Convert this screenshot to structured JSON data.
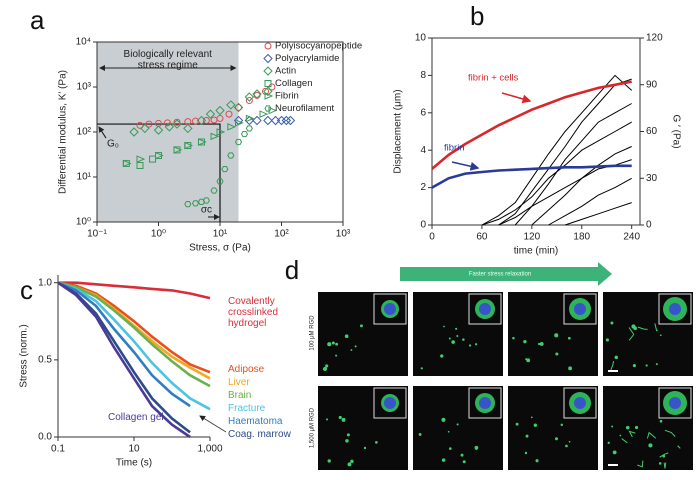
{
  "chart_data": [
    {
      "type": "scatter",
      "panel_label": "a",
      "xlabel": "Stress, σ (Pa)",
      "ylabel": "Differential modulus, K′ (Pa)",
      "xlog": true,
      "ylog": true,
      "xlim": [
        0.1,
        1000
      ],
      "ylim": [
        1,
        10000
      ],
      "xticks": [
        {
          "value": 0.1,
          "label": "10⁻¹"
        },
        {
          "value": 1,
          "label": "10⁰"
        },
        {
          "value": 10,
          "label": "10¹"
        },
        {
          "value": 100,
          "label": "10²"
        },
        {
          "value": 1000,
          "label": "10³"
        }
      ],
      "yticks": [
        {
          "value": 1,
          "label": "10⁰"
        },
        {
          "value": 10,
          "label": "10¹"
        },
        {
          "value": 100,
          "label": "10²"
        },
        {
          "value": 1000,
          "label": "10³"
        },
        {
          "value": 10000,
          "label": "10⁴"
        }
      ],
      "shaded_xrange": [
        0.1,
        20
      ],
      "shade_text": "Biologically relevant stress regime",
      "crosshair": {
        "x": 10,
        "y": 150
      },
      "crosshair_y_label": "G₀",
      "crosshair_x_label": "σc",
      "legend": "upper right",
      "series": [
        {
          "name": "Polyisocyanopeptide",
          "color": "#e0474c",
          "marker": "circle",
          "x": [
            0.5,
            0.7,
            1,
            1.4,
            2,
            3,
            4,
            6,
            8,
            10,
            14,
            20,
            30,
            40,
            55,
            70
          ],
          "values": [
            140,
            150,
            155,
            160,
            165,
            170,
            175,
            180,
            185,
            200,
            250,
            350,
            500,
            650,
            800,
            1000
          ]
        },
        {
          "name": "Polyacrylamide",
          "color": "#3a5fb0",
          "marker": "diamond",
          "x": [
            20,
            30,
            40,
            60,
            80,
            100,
            120,
            140
          ],
          "values": [
            180,
            180,
            180,
            180,
            180,
            180,
            180,
            180
          ]
        },
        {
          "name": "Actin",
          "color": "#3a9a5a",
          "marker": "diamond",
          "x": [
            0.4,
            0.6,
            1,
            1.5,
            2,
            3,
            5,
            7,
            10,
            15,
            20,
            30,
            40,
            60
          ],
          "values": [
            100,
            120,
            110,
            130,
            150,
            120,
            180,
            250,
            300,
            400,
            350,
            600,
            700,
            800
          ]
        },
        {
          "name": "Collagen",
          "color": "#3a9a5a",
          "marker": "square",
          "x": [
            0.3,
            0.5,
            0.8,
            1,
            2,
            3,
            5
          ],
          "values": [
            20,
            18,
            25,
            30,
            40,
            50,
            60
          ]
        },
        {
          "name": "Fibrin",
          "color": "#3a9a5a",
          "marker": "triangle",
          "x": [
            0.3,
            0.5,
            1,
            2,
            3,
            5,
            8,
            10,
            15,
            20,
            30,
            50,
            70
          ],
          "values": [
            20,
            25,
            30,
            40,
            50,
            60,
            80,
            100,
            130,
            160,
            200,
            250,
            300
          ]
        },
        {
          "name": "Neurofilament",
          "color": "#3a9a5a",
          "marker": "hexagon",
          "x": [
            3,
            4,
            5,
            6,
            8,
            10,
            12,
            15,
            20,
            25,
            30
          ],
          "values": [
            2.5,
            2.6,
            2.8,
            3,
            5,
            8,
            15,
            30,
            60,
            90,
            120
          ]
        }
      ]
    },
    {
      "type": "line",
      "panel_label": "b",
      "xlabel": "time (min)",
      "ylabel": "Displacement (μm)",
      "y2label": "G ′ (Pa)",
      "xlim": [
        0,
        250
      ],
      "xticks": [
        0,
        60,
        120,
        180,
        240
      ],
      "ylim": [
        0,
        10
      ],
      "yticks": [
        0,
        2,
        4,
        6,
        8,
        10
      ],
      "y2lim": [
        0,
        120
      ],
      "y2ticks": [
        0,
        30,
        60,
        90,
        120
      ],
      "legend": "inline",
      "x": [
        0,
        20,
        40,
        60,
        80,
        100,
        120,
        140,
        160,
        180,
        200,
        220,
        240
      ],
      "series": [
        {
          "color": "#000000",
          "values": [
            null,
            null,
            null,
            null,
            0,
            0.6,
            1.8,
            3,
            4.2,
            5.5,
            6.5,
            7.5,
            7.8
          ]
        },
        {
          "color": "#000000",
          "values": [
            null,
            null,
            null,
            0,
            0.5,
            1.2,
            2.5,
            3.8,
            5,
            6,
            7,
            8,
            7.2
          ]
        },
        {
          "color": "#000000",
          "values": [
            null,
            null,
            null,
            null,
            null,
            0,
            1,
            2.2,
            3.5,
            4.5,
            5.5,
            6,
            6.5
          ]
        },
        {
          "color": "#000000",
          "values": [
            null,
            null,
            null,
            0,
            0.3,
            0.8,
            1.5,
            2.5,
            3.2,
            4,
            4.5,
            5,
            5.5
          ]
        },
        {
          "color": "#000000",
          "values": [
            null,
            null,
            null,
            null,
            null,
            null,
            0,
            0.8,
            1.6,
            2.5,
            3.2,
            3.8,
            4.2
          ]
        },
        {
          "color": "#000000",
          "values": [
            null,
            null,
            null,
            null,
            0,
            0.4,
            1,
            1.5,
            2,
            2.5,
            3,
            3.2,
            3.5
          ]
        },
        {
          "color": "#000000",
          "values": [
            null,
            null,
            null,
            null,
            null,
            null,
            null,
            0,
            0.5,
            1,
            1.6,
            2,
            2.5
          ]
        },
        {
          "color": "#000000",
          "values": [
            null,
            null,
            null,
            null,
            null,
            null,
            null,
            null,
            0,
            0.3,
            0.6,
            0.9,
            1.2
          ]
        },
        {
          "name": "fibrin + cells",
          "color": "#d8262b",
          "axis": "y2",
          "values": [
            36,
            45,
            52,
            58,
            64,
            69,
            74,
            78,
            82,
            85,
            88,
            90,
            92
          ]
        },
        {
          "name": "fibrin",
          "color": "#2b3a96",
          "axis": "y2",
          "values": [
            24,
            30,
            33,
            34,
            35,
            35.5,
            36,
            36.5,
            37,
            37,
            37.5,
            38,
            38
          ]
        }
      ]
    },
    {
      "type": "line",
      "panel_label": "c",
      "xlabel": "Time (s)",
      "ylabel": "Stress (norm.)",
      "xlog": true,
      "xlim": [
        0.1,
        1000
      ],
      "xticks": [
        0.1,
        10,
        {
          "value": 1000,
          "label": "1,000"
        }
      ],
      "ylim": [
        0,
        1.05
      ],
      "yticks": [
        {
          "value": 0,
          "label": "0.0"
        },
        0.5,
        {
          "value": 1,
          "label": "1.0"
        }
      ],
      "legend": "right",
      "x": [
        0.1,
        0.3,
        1,
        3,
        10,
        30,
        100,
        300,
        1000
      ],
      "series": [
        {
          "name": "Covalently crosslinked hydrogel",
          "color": "#d62f3a",
          "values": [
            1,
            1,
            0.99,
            0.98,
            0.97,
            0.96,
            0.95,
            0.93,
            0.9
          ]
        },
        {
          "name": "Adipose",
          "color": "#e8501c",
          "values": [
            1,
            0.98,
            0.93,
            0.85,
            0.75,
            0.65,
            0.55,
            0.47,
            0.42
          ]
        },
        {
          "name": "Liver",
          "color": "#f5a623",
          "values": [
            1,
            0.97,
            0.92,
            0.83,
            0.72,
            0.62,
            0.52,
            0.45,
            0.38
          ]
        },
        {
          "name": "Brain",
          "color": "#6ab04c",
          "values": [
            1,
            0.97,
            0.91,
            0.82,
            0.71,
            0.6,
            0.49,
            0.4,
            0.33
          ]
        },
        {
          "name": "Fracture",
          "color": "#4cc3e0",
          "values": [
            1,
            0.96,
            0.88,
            0.76,
            0.62,
            0.48,
            0.35,
            0.25,
            0.18
          ]
        },
        {
          "name": "Haematoma",
          "color": "#2f7ec1",
          "values": [
            1,
            0.95,
            0.85,
            0.7,
            0.55,
            0.4,
            0.28,
            0.2,
            null
          ]
        },
        {
          "name": "Coag. marrow",
          "color": "#2b4b8c",
          "values": [
            1,
            0.93,
            0.8,
            0.62,
            0.42,
            0.25,
            0.12,
            0.03,
            null
          ]
        },
        {
          "name": "Collagen gel",
          "color": "#4b3a96",
          "values": [
            1,
            0.92,
            0.78,
            0.58,
            0.38,
            0.2,
            0.08,
            0,
            null
          ]
        }
      ]
    }
  ],
  "image_panel": {
    "panel_label": "d",
    "arrow_text": "Faster stress relaxation",
    "row_labels": [
      "100 μM RGD",
      "1,500 μM RGD"
    ]
  }
}
